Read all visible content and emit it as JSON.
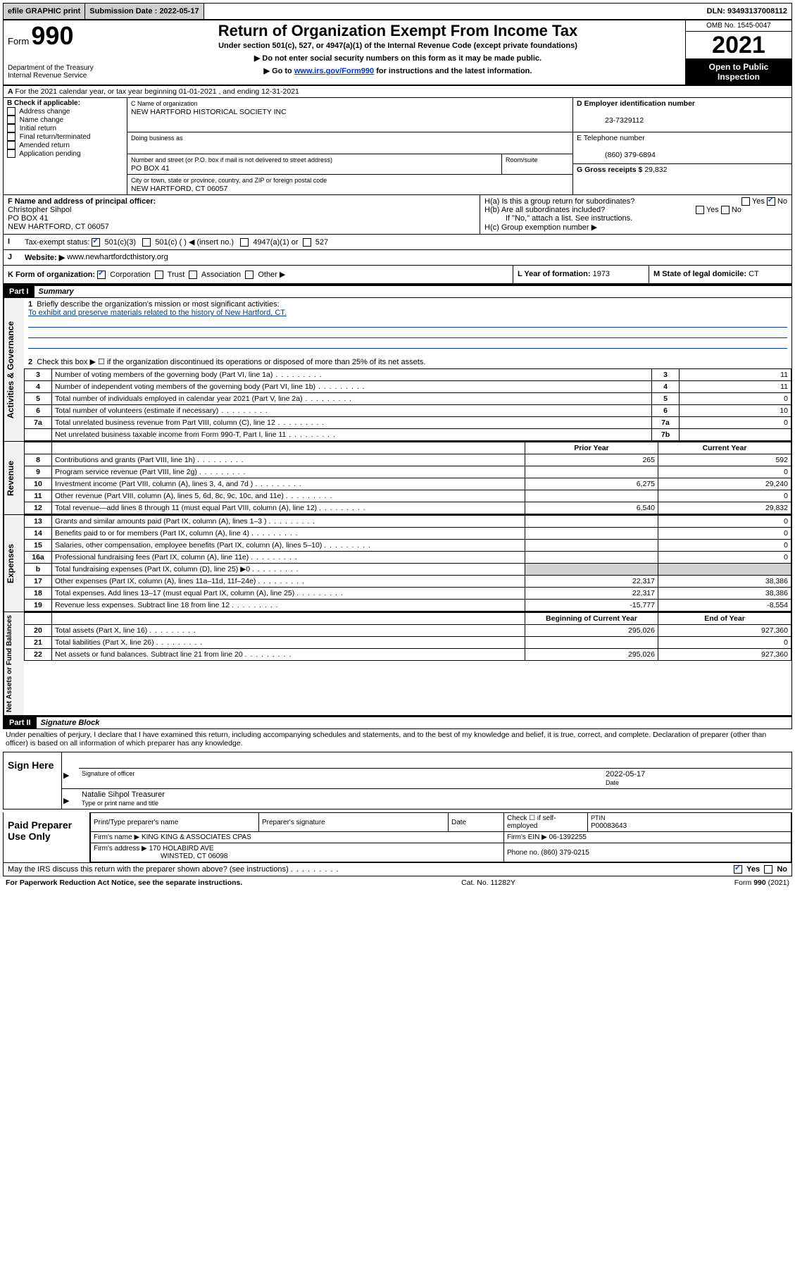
{
  "topbar": {
    "efile": "efile GRAPHIC print",
    "sub_label": "Submission Date : 2022-05-17",
    "dln": "DLN: 93493137008112"
  },
  "header": {
    "form_prefix": "Form",
    "form_num": "990",
    "title": "Return of Organization Exempt From Income Tax",
    "sub1": "Under section 501(c), 527, or 4947(a)(1) of the Internal Revenue Code (except private foundations)",
    "sub2": "▶ Do not enter social security numbers on this form as it may be made public.",
    "sub3_pre": "▶ Go to ",
    "sub3_link": "www.irs.gov/Form990",
    "sub3_post": " for instructions and the latest information.",
    "omb": "OMB No. 1545-0047",
    "year": "2021",
    "open": "Open to Public Inspection",
    "dept": "Department of the Treasury Internal Revenue Service"
  },
  "a_line": "For the 2021 calendar year, or tax year beginning 01-01-2021   , and ending 12-31-2021",
  "b": {
    "label": "B Check if applicable:",
    "items": [
      "Address change",
      "Name change",
      "Initial return",
      "Final return/terminated",
      "Amended return",
      "Application pending"
    ]
  },
  "c": {
    "label": "C Name of organization",
    "name": "NEW HARTFORD HISTORICAL SOCIETY INC",
    "dba_label": "Doing business as",
    "addr_label": "Number and street (or P.O. box if mail is not delivered to street address)",
    "room_label": "Room/suite",
    "addr": "PO BOX 41",
    "city_label": "City or town, state or province, country, and ZIP or foreign postal code",
    "city": "NEW HARTFORD, CT  06057"
  },
  "d": {
    "label": "D Employer identification number",
    "val": "23-7329112"
  },
  "e": {
    "label": "E Telephone number",
    "val": "(860) 379-6894"
  },
  "g": {
    "label": "G Gross receipts $",
    "val": "29,832"
  },
  "f": {
    "label": "F Name and address of principal officer:",
    "name": "Christopher Sihpol",
    "addr1": "PO BOX 41",
    "addr2": "NEW HARTFORD, CT  06057"
  },
  "h": {
    "ha": "H(a)  Is this a group return for subordinates?",
    "hb": "H(b)  Are all subordinates included?",
    "hb_note": "If \"No,\" attach a list. See instructions.",
    "hc": "H(c)  Group exemption number ▶",
    "yes": "Yes",
    "no": "No"
  },
  "i": {
    "label": "Tax-exempt status:",
    "opt1": "501(c)(3)",
    "opt2": "501(c) (   ) ◀ (insert no.)",
    "opt3": "4947(a)(1) or",
    "opt4": "527"
  },
  "j": {
    "label": "Website: ▶",
    "val": "www.newhartfordcthistory.org"
  },
  "k": {
    "label": "K Form of organization:",
    "opts": [
      "Corporation",
      "Trust",
      "Association",
      "Other ▶"
    ]
  },
  "l": {
    "label": "L Year of formation:",
    "val": "1973"
  },
  "m": {
    "label": "M State of legal domicile:",
    "val": "CT"
  },
  "part1": {
    "tag": "Part I",
    "title": "Summary",
    "q1": "Briefly describe the organization's mission or most significant activities:",
    "q1_ans": "To exhibit and preserve materials related to the history of New Hartford, CT.",
    "q2": "Check this box ▶ ☐  if the organization discontinued its operations or disposed of more than 25% of its net assets.",
    "rows_ag": [
      {
        "n": "3",
        "t": "Number of voting members of the governing body (Part VI, line 1a)",
        "k": "3",
        "v": "11"
      },
      {
        "n": "4",
        "t": "Number of independent voting members of the governing body (Part VI, line 1b)",
        "k": "4",
        "v": "11"
      },
      {
        "n": "5",
        "t": "Total number of individuals employed in calendar year 2021 (Part V, line 2a)",
        "k": "5",
        "v": "0"
      },
      {
        "n": "6",
        "t": "Total number of volunteers (estimate if necessary)",
        "k": "6",
        "v": "10"
      },
      {
        "n": "7a",
        "t": "Total unrelated business revenue from Part VIII, column (C), line 12",
        "k": "7a",
        "v": "0"
      },
      {
        "n": "",
        "t": "Net unrelated business taxable income from Form 990-T, Part I, line 11",
        "k": "7b",
        "v": ""
      }
    ],
    "col_prior": "Prior Year",
    "col_curr": "Current Year",
    "rev": [
      {
        "n": "8",
        "t": "Contributions and grants (Part VIII, line 1h)",
        "p": "265",
        "c": "592"
      },
      {
        "n": "9",
        "t": "Program service revenue (Part VIII, line 2g)",
        "p": "",
        "c": "0"
      },
      {
        "n": "10",
        "t": "Investment income (Part VIII, column (A), lines 3, 4, and 7d )",
        "p": "6,275",
        "c": "29,240"
      },
      {
        "n": "11",
        "t": "Other revenue (Part VIII, column (A), lines 5, 6d, 8c, 9c, 10c, and 11e)",
        "p": "",
        "c": "0"
      },
      {
        "n": "12",
        "t": "Total revenue—add lines 8 through 11 (must equal Part VIII, column (A), line 12)",
        "p": "6,540",
        "c": "29,832"
      }
    ],
    "exp": [
      {
        "n": "13",
        "t": "Grants and similar amounts paid (Part IX, column (A), lines 1–3 )",
        "p": "",
        "c": "0"
      },
      {
        "n": "14",
        "t": "Benefits paid to or for members (Part IX, column (A), line 4)",
        "p": "",
        "c": "0"
      },
      {
        "n": "15",
        "t": "Salaries, other compensation, employee benefits (Part IX, column (A), lines 5–10)",
        "p": "",
        "c": "0"
      },
      {
        "n": "16a",
        "t": "Professional fundraising fees (Part IX, column (A), line 11e)",
        "p": "",
        "c": "0"
      },
      {
        "n": "b",
        "t": "Total fundraising expenses (Part IX, column (D), line 25) ▶0",
        "p": "SHADE",
        "c": "SHADE"
      },
      {
        "n": "17",
        "t": "Other expenses (Part IX, column (A), lines 11a–11d, 11f–24e)",
        "p": "22,317",
        "c": "38,386"
      },
      {
        "n": "18",
        "t": "Total expenses. Add lines 13–17 (must equal Part IX, column (A), line 25)",
        "p": "22,317",
        "c": "38,386"
      },
      {
        "n": "19",
        "t": "Revenue less expenses. Subtract line 18 from line 12",
        "p": "-15,777",
        "c": "-8,554"
      }
    ],
    "col_begin": "Beginning of Current Year",
    "col_end": "End of Year",
    "net": [
      {
        "n": "20",
        "t": "Total assets (Part X, line 16)",
        "p": "295,026",
        "c": "927,360"
      },
      {
        "n": "21",
        "t": "Total liabilities (Part X, line 26)",
        "p": "",
        "c": "0"
      },
      {
        "n": "22",
        "t": "Net assets or fund balances. Subtract line 21 from line 20",
        "p": "295,026",
        "c": "927,360"
      }
    ],
    "vert_ag": "Activities & Governance",
    "vert_rev": "Revenue",
    "vert_exp": "Expenses",
    "vert_net": "Net Assets or Fund Balances"
  },
  "part2": {
    "tag": "Part II",
    "title": "Signature Block",
    "decl": "Under penalties of perjury, I declare that I have examined this return, including accompanying schedules and statements, and to the best of my knowledge and belief, it is true, correct, and complete. Declaration of preparer (other than officer) is based on all information of which preparer has any knowledge.",
    "sign_here": "Sign Here",
    "sig_officer": "Signature of officer",
    "date_label": "Date",
    "date_val": "2022-05-17",
    "name_title": "Natalie Sihpol Treasurer",
    "type_name": "Type or print name and title",
    "paid": "Paid Preparer Use Only",
    "pt_name": "Print/Type preparer's name",
    "pt_sig": "Preparer's signature",
    "pt_date": "Date",
    "pt_check": "Check ☐ if self-employed",
    "ptin_label": "PTIN",
    "ptin": "P00083643",
    "firm_name_l": "Firm's name    ▶",
    "firm_name": "KING KING & ASSOCIATES CPAS",
    "firm_ein_l": "Firm's EIN ▶",
    "firm_ein": "06-1392255",
    "firm_addr_l": "Firm's address ▶",
    "firm_addr1": "170 HOLABIRD AVE",
    "firm_addr2": "WINSTED, CT  06098",
    "phone_l": "Phone no.",
    "phone": "(860) 379-0215",
    "may_irs": "May the IRS discuss this return with the preparer shown above? (see instructions)"
  },
  "footer": {
    "left": "For Paperwork Reduction Act Notice, see the separate instructions.",
    "mid": "Cat. No. 11282Y",
    "right": "Form 990 (2021)"
  }
}
